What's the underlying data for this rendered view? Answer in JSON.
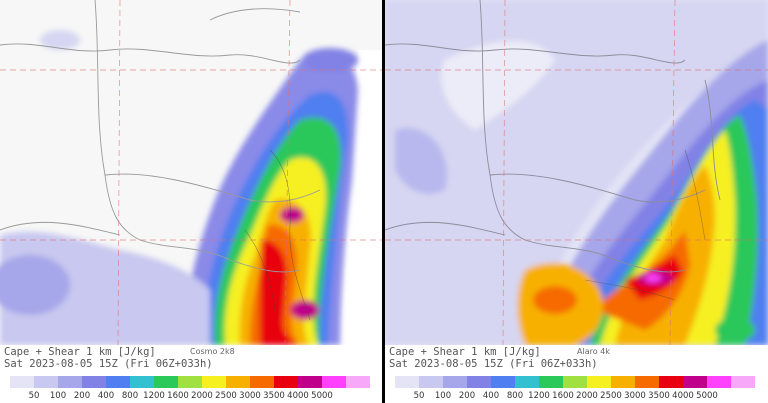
{
  "panels": [
    {
      "title": "Cape + Shear 1 km  [J/kg]",
      "model": "Cosmo 2k8",
      "valid_time": "Sat 2023-08-05 15Z (Fri 06Z+033h)"
    },
    {
      "title": "Cape + Shear 1 km  [J/kg]",
      "model": "Alaro 4k",
      "valid_time": "Sat 2023-08-05 15Z (Fri 06Z+033h)"
    }
  ],
  "legend": {
    "labels": [
      "50",
      "100",
      "200",
      "400",
      "800",
      "1200",
      "1600",
      "2000",
      "2500",
      "3000",
      "3500",
      "4000",
      "5000"
    ],
    "colors": [
      "#e4e4f6",
      "#c8c8f0",
      "#a6a6ea",
      "#8282e6",
      "#4f7ff0",
      "#33c0d0",
      "#2bc85a",
      "#a0e040",
      "#f6f020",
      "#f7b000",
      "#f66a00",
      "#e80010",
      "#c0008a",
      "#ff40ff",
      "#f8a8f8"
    ]
  }
}
